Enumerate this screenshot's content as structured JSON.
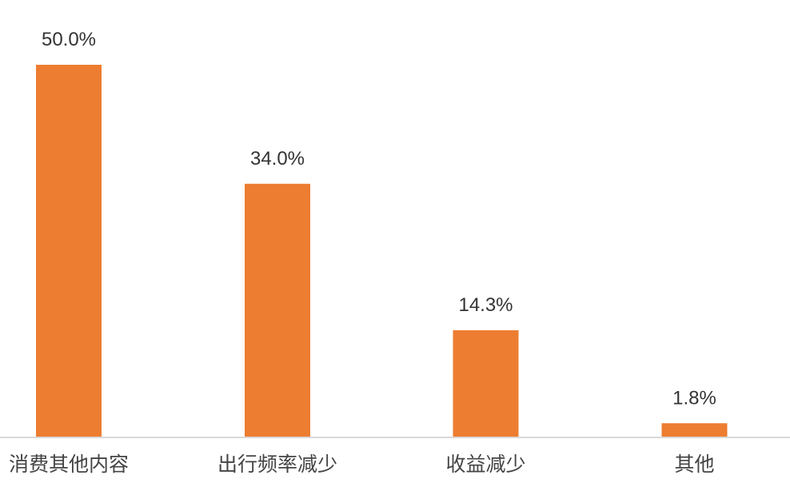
{
  "chart_data": {
    "type": "bar",
    "categories": [
      "消费其他内容",
      "出行频率减少",
      "收益减少",
      "其他"
    ],
    "values": [
      50.0,
      34.0,
      14.3,
      1.8
    ],
    "data_labels": [
      "50.0%",
      "34.0%",
      "14.3%",
      "1.8%"
    ],
    "title": "",
    "xlabel": "",
    "ylabel": "",
    "ylim": [
      0,
      50
    ],
    "grid": false,
    "bar_color": "#ED7D31",
    "axis_color": "#D9D9D9"
  }
}
